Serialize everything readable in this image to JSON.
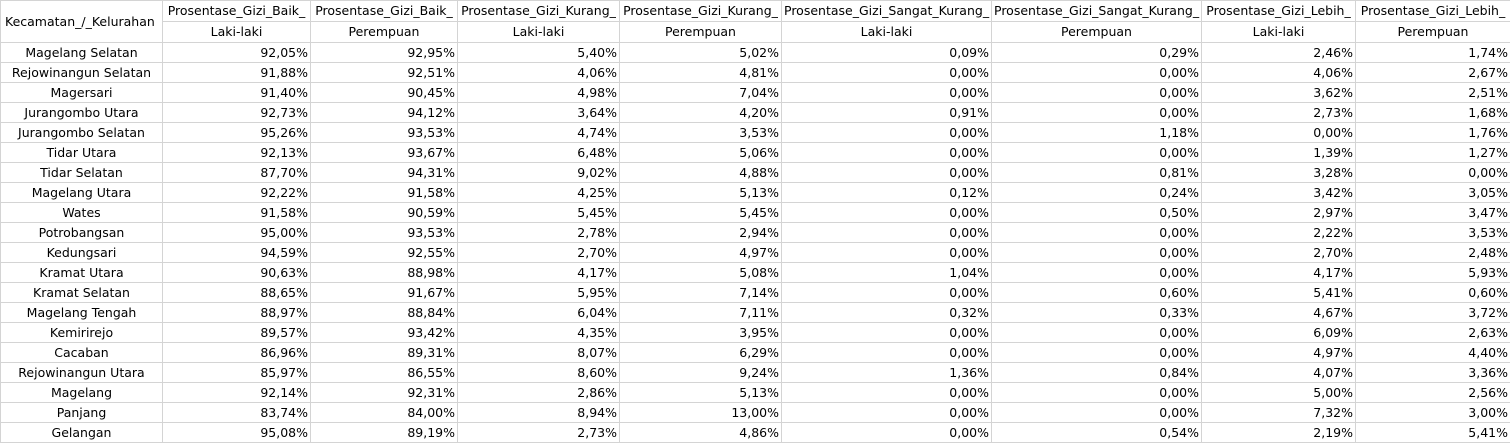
{
  "headers": [
    [
      "Kecamatan_/_Kelurahan",
      ""
    ],
    [
      "Prosentase_Gizi_Baik_",
      "Laki-laki"
    ],
    [
      "Prosentase_Gizi_Baik_",
      "Perempuan"
    ],
    [
      "Prosentase_Gizi_Kurang_",
      "Laki-laki"
    ],
    [
      "Prosentase_Gizi_Kurang_",
      "Perempuan"
    ],
    [
      "Prosentase_Gizi_Sangat_Kurang_",
      "Laki-laki"
    ],
    [
      "Prosentase_Gizi_Sangat_Kurang_",
      "Perempuan"
    ],
    [
      "Prosentase_Gizi_Lebih_",
      "Laki-laki"
    ],
    [
      "Prosentase_Gizi_Lebih_",
      "Perempuan"
    ]
  ],
  "rows": [
    [
      "Magelang Selatan",
      "92,05%",
      "92,95%",
      "5,40%",
      "5,02%",
      "0,09%",
      "0,29%",
      "2,46%",
      "1,74%"
    ],
    [
      "Rejowinangun Selatan",
      "91,88%",
      "92,51%",
      "4,06%",
      "4,81%",
      "0,00%",
      "0,00%",
      "4,06%",
      "2,67%"
    ],
    [
      "Magersari",
      "91,40%",
      "90,45%",
      "4,98%",
      "7,04%",
      "0,00%",
      "0,00%",
      "3,62%",
      "2,51%"
    ],
    [
      "Jurangombo Utara",
      "92,73%",
      "94,12%",
      "3,64%",
      "4,20%",
      "0,91%",
      "0,00%",
      "2,73%",
      "1,68%"
    ],
    [
      "Jurangombo Selatan",
      "95,26%",
      "93,53%",
      "4,74%",
      "3,53%",
      "0,00%",
      "1,18%",
      "0,00%",
      "1,76%"
    ],
    [
      "Tidar Utara",
      "92,13%",
      "93,67%",
      "6,48%",
      "5,06%",
      "0,00%",
      "0,00%",
      "1,39%",
      "1,27%"
    ],
    [
      "Tidar Selatan",
      "87,70%",
      "94,31%",
      "9,02%",
      "4,88%",
      "0,00%",
      "0,81%",
      "3,28%",
      "0,00%"
    ],
    [
      "Magelang Utara",
      "92,22%",
      "91,58%",
      "4,25%",
      "5,13%",
      "0,12%",
      "0,24%",
      "3,42%",
      "3,05%"
    ],
    [
      "Wates",
      "91,58%",
      "90,59%",
      "5,45%",
      "5,45%",
      "0,00%",
      "0,50%",
      "2,97%",
      "3,47%"
    ],
    [
      "Potrobangsan",
      "95,00%",
      "93,53%",
      "2,78%",
      "2,94%",
      "0,00%",
      "0,00%",
      "2,22%",
      "3,53%"
    ],
    [
      "Kedungsari",
      "94,59%",
      "92,55%",
      "2,70%",
      "4,97%",
      "0,00%",
      "0,00%",
      "2,70%",
      "2,48%"
    ],
    [
      "Kramat Utara",
      "90,63%",
      "88,98%",
      "4,17%",
      "5,08%",
      "1,04%",
      "0,00%",
      "4,17%",
      "5,93%"
    ],
    [
      "Kramat Selatan",
      "88,65%",
      "91,67%",
      "5,95%",
      "7,14%",
      "0,00%",
      "0,60%",
      "5,41%",
      "0,60%"
    ],
    [
      "Magelang Tengah",
      "88,97%",
      "88,84%",
      "6,04%",
      "7,11%",
      "0,32%",
      "0,33%",
      "4,67%",
      "3,72%"
    ],
    [
      "Kemirirejo",
      "89,57%",
      "93,42%",
      "4,35%",
      "3,95%",
      "0,00%",
      "0,00%",
      "6,09%",
      "2,63%"
    ],
    [
      "Cacaban",
      "86,96%",
      "89,31%",
      "8,07%",
      "6,29%",
      "0,00%",
      "0,00%",
      "4,97%",
      "4,40%"
    ],
    [
      "Rejowinangun Utara",
      "85,97%",
      "86,55%",
      "8,60%",
      "9,24%",
      "1,36%",
      "0,84%",
      "4,07%",
      "3,36%"
    ],
    [
      "Magelang",
      "92,14%",
      "92,31%",
      "2,86%",
      "5,13%",
      "0,00%",
      "0,00%",
      "5,00%",
      "2,56%"
    ],
    [
      "Panjang",
      "83,74%",
      "84,00%",
      "8,94%",
      "13,00%",
      "0,00%",
      "0,00%",
      "7,32%",
      "3,00%"
    ],
    [
      "Gelangan",
      "95,08%",
      "89,19%",
      "2,73%",
      "4,86%",
      "0,00%",
      "0,54%",
      "2,19%",
      "5,41%"
    ]
  ]
}
